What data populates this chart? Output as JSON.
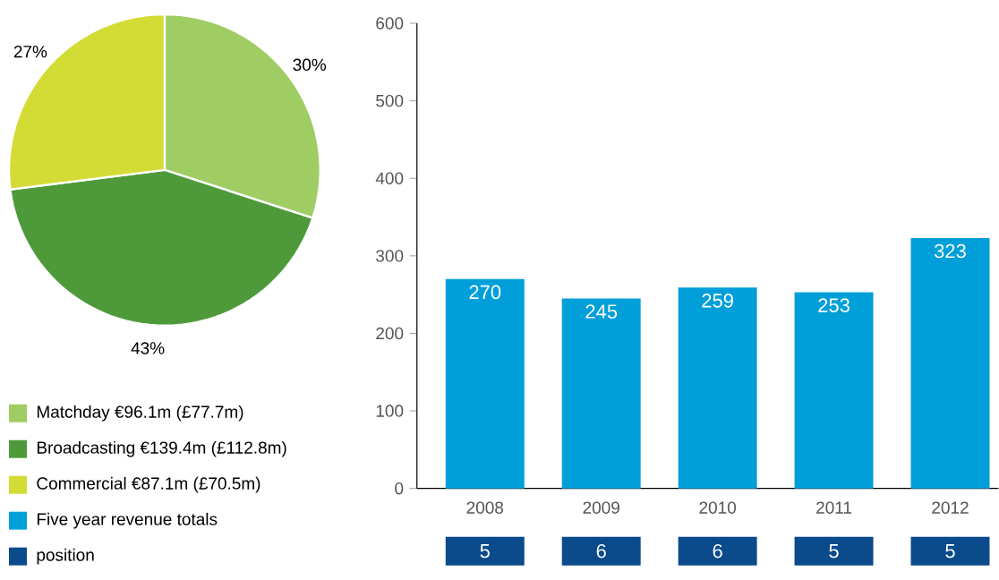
{
  "chart_data": [
    {
      "type": "pie",
      "categories": [
        "Matchday €96.1m (£77.7m)",
        "Broadcasting €139.4m (£112.8m)",
        "Commercial €87.1m (£70.5m)"
      ],
      "values": [
        30,
        43,
        27
      ],
      "colors": [
        "#9fcd63",
        "#4e9a3b",
        "#d3dc35"
      ],
      "value_labels": [
        "30%",
        "43%",
        "27%"
      ],
      "legend": "bottom"
    },
    {
      "type": "bar",
      "categories": [
        "2008",
        "2009",
        "2010",
        "2011",
        "2012"
      ],
      "series": [
        {
          "name": "Five year revenue totals",
          "color": "#009fda",
          "values": [
            270,
            245,
            259,
            253,
            323
          ]
        }
      ],
      "ylim": [
        0,
        600
      ],
      "yticks": [
        0,
        100,
        200,
        300,
        400,
        500,
        600
      ],
      "data_labels": true,
      "legend": "bottom left"
    },
    {
      "type": "other",
      "categories": [
        null,
        null,
        null,
        null,
        null
      ],
      "series": [
        {
          "name": "position",
          "color": "#0b4a8b",
          "values": [
            5,
            6,
            6,
            5,
            5
          ]
        }
      ],
      "data_labels": true,
      "legend": "bottom left"
    }
  ]
}
